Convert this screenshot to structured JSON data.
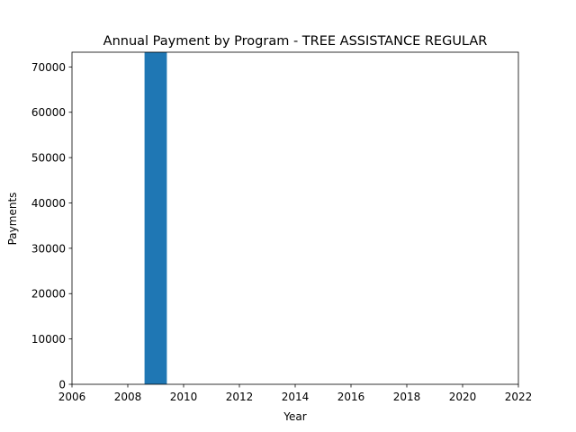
{
  "chart_data": {
    "type": "bar",
    "title": "Annual Payment by Program - TREE ASSISTANCE REGULAR",
    "xlabel": "Year",
    "ylabel": "Payments",
    "x": [
      2009
    ],
    "values": [
      73250
    ],
    "bar_width_years": 0.8,
    "xlim": [
      2006,
      2022
    ],
    "ylim": [
      0,
      73250
    ],
    "xticks": [
      2006,
      2008,
      2010,
      2012,
      2014,
      2016,
      2018,
      2020,
      2022
    ],
    "yticks": [
      0,
      10000,
      20000,
      30000,
      40000,
      50000,
      60000,
      70000
    ],
    "grid": false,
    "legend": "none",
    "colors": {
      "bar": "#1f77b4",
      "axis": "#000000",
      "background": "#ffffff"
    }
  }
}
